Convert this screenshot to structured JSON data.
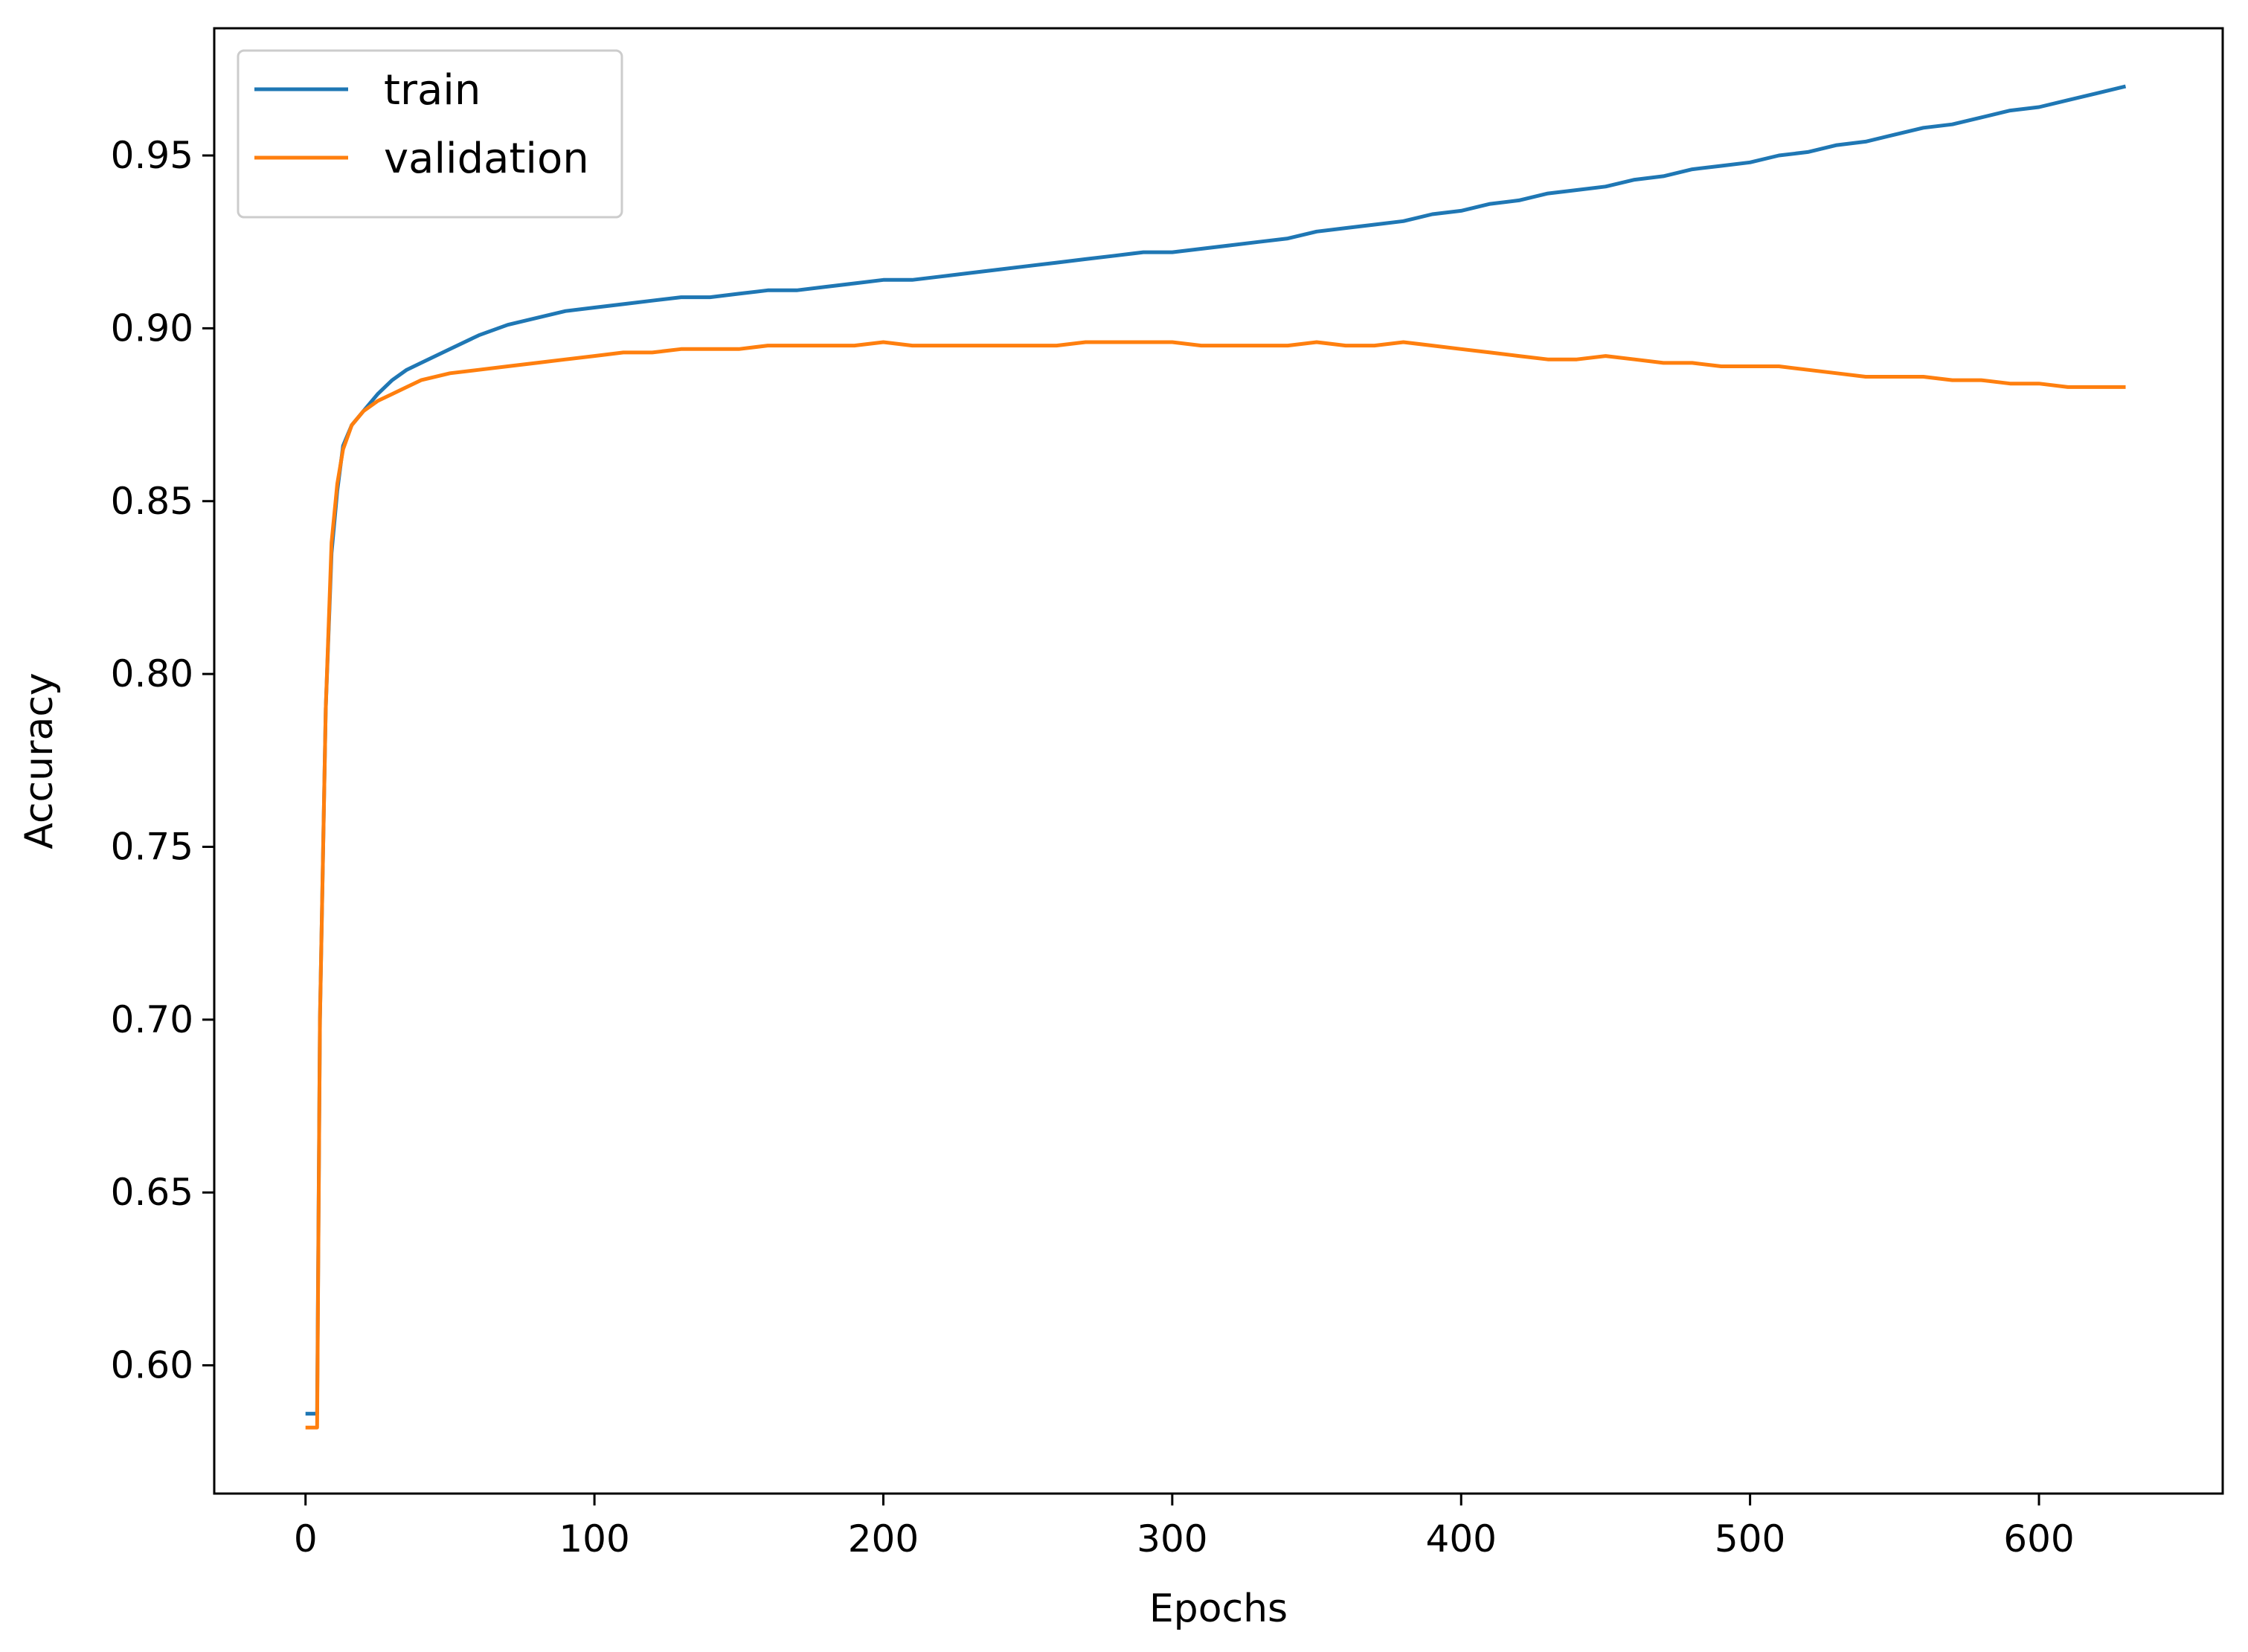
{
  "chart_data": {
    "type": "line",
    "title": "",
    "xlabel": "Epochs",
    "ylabel": "Accuracy",
    "xlim": [
      -31.6,
      663.6
    ],
    "ylim": [
      0.5629,
      0.9868
    ],
    "xticks": [
      0,
      100,
      200,
      300,
      400,
      500,
      600
    ],
    "xtick_labels": [
      "0",
      "100",
      "200",
      "300",
      "400",
      "500",
      "600"
    ],
    "yticks": [
      0.6,
      0.65,
      0.7,
      0.75,
      0.8,
      0.85,
      0.9,
      0.95
    ],
    "ytick_labels": [
      "0.60",
      "0.65",
      "0.70",
      "0.75",
      "0.80",
      "0.85",
      "0.90",
      "0.95"
    ],
    "grid": false,
    "legend_position": "top-left",
    "series": [
      {
        "name": "train",
        "color": "#1f77b4",
        "points": [
          [
            0,
            0.586
          ],
          [
            4,
            0.586
          ],
          [
            5,
            0.7
          ],
          [
            7,
            0.79
          ],
          [
            9,
            0.835
          ],
          [
            11,
            0.853
          ],
          [
            13,
            0.866
          ],
          [
            16,
            0.872
          ],
          [
            20,
            0.876
          ],
          [
            25,
            0.881
          ],
          [
            30,
            0.885
          ],
          [
            35,
            0.888
          ],
          [
            40,
            0.89
          ],
          [
            50,
            0.894
          ],
          [
            60,
            0.898
          ],
          [
            70,
            0.901
          ],
          [
            80,
            0.903
          ],
          [
            90,
            0.905
          ],
          [
            100,
            0.906
          ],
          [
            110,
            0.907
          ],
          [
            120,
            0.908
          ],
          [
            130,
            0.909
          ],
          [
            140,
            0.909
          ],
          [
            150,
            0.91
          ],
          [
            160,
            0.911
          ],
          [
            170,
            0.911
          ],
          [
            180,
            0.912
          ],
          [
            190,
            0.913
          ],
          [
            200,
            0.914
          ],
          [
            210,
            0.914
          ],
          [
            220,
            0.915
          ],
          [
            230,
            0.916
          ],
          [
            240,
            0.917
          ],
          [
            250,
            0.918
          ],
          [
            260,
            0.919
          ],
          [
            270,
            0.92
          ],
          [
            280,
            0.921
          ],
          [
            290,
            0.922
          ],
          [
            300,
            0.922
          ],
          [
            310,
            0.923
          ],
          [
            320,
            0.924
          ],
          [
            330,
            0.925
          ],
          [
            340,
            0.926
          ],
          [
            350,
            0.928
          ],
          [
            360,
            0.929
          ],
          [
            370,
            0.93
          ],
          [
            380,
            0.931
          ],
          [
            390,
            0.933
          ],
          [
            400,
            0.934
          ],
          [
            410,
            0.936
          ],
          [
            420,
            0.937
          ],
          [
            430,
            0.939
          ],
          [
            440,
            0.94
          ],
          [
            450,
            0.941
          ],
          [
            460,
            0.943
          ],
          [
            470,
            0.944
          ],
          [
            480,
            0.946
          ],
          [
            490,
            0.947
          ],
          [
            500,
            0.948
          ],
          [
            510,
            0.95
          ],
          [
            520,
            0.951
          ],
          [
            530,
            0.953
          ],
          [
            540,
            0.954
          ],
          [
            550,
            0.956
          ],
          [
            560,
            0.958
          ],
          [
            570,
            0.959
          ],
          [
            580,
            0.961
          ],
          [
            590,
            0.963
          ],
          [
            600,
            0.964
          ],
          [
            610,
            0.966
          ],
          [
            620,
            0.968
          ],
          [
            630,
            0.97
          ]
        ]
      },
      {
        "name": "validation",
        "color": "#ff7f0e",
        "points": [
          [
            0,
            0.582
          ],
          [
            4,
            0.582
          ],
          [
            5,
            0.7
          ],
          [
            7,
            0.79
          ],
          [
            9,
            0.838
          ],
          [
            11,
            0.855
          ],
          [
            13,
            0.865
          ],
          [
            16,
            0.872
          ],
          [
            20,
            0.876
          ],
          [
            25,
            0.879
          ],
          [
            30,
            0.881
          ],
          [
            35,
            0.883
          ],
          [
            40,
            0.885
          ],
          [
            50,
            0.887
          ],
          [
            60,
            0.888
          ],
          [
            70,
            0.889
          ],
          [
            80,
            0.89
          ],
          [
            90,
            0.891
          ],
          [
            100,
            0.892
          ],
          [
            110,
            0.893
          ],
          [
            120,
            0.893
          ],
          [
            130,
            0.894
          ],
          [
            140,
            0.894
          ],
          [
            150,
            0.894
          ],
          [
            160,
            0.895
          ],
          [
            170,
            0.895
          ],
          [
            180,
            0.895
          ],
          [
            190,
            0.895
          ],
          [
            200,
            0.896
          ],
          [
            210,
            0.895
          ],
          [
            220,
            0.895
          ],
          [
            230,
            0.895
          ],
          [
            240,
            0.895
          ],
          [
            250,
            0.895
          ],
          [
            260,
            0.895
          ],
          [
            270,
            0.896
          ],
          [
            280,
            0.896
          ],
          [
            290,
            0.896
          ],
          [
            300,
            0.896
          ],
          [
            310,
            0.895
          ],
          [
            320,
            0.895
          ],
          [
            330,
            0.895
          ],
          [
            340,
            0.895
          ],
          [
            350,
            0.896
          ],
          [
            360,
            0.895
          ],
          [
            370,
            0.895
          ],
          [
            380,
            0.896
          ],
          [
            390,
            0.895
          ],
          [
            400,
            0.894
          ],
          [
            410,
            0.893
          ],
          [
            420,
            0.892
          ],
          [
            430,
            0.891
          ],
          [
            440,
            0.891
          ],
          [
            450,
            0.892
          ],
          [
            460,
            0.891
          ],
          [
            470,
            0.89
          ],
          [
            480,
            0.89
          ],
          [
            490,
            0.889
          ],
          [
            500,
            0.889
          ],
          [
            510,
            0.889
          ],
          [
            520,
            0.888
          ],
          [
            530,
            0.887
          ],
          [
            540,
            0.886
          ],
          [
            550,
            0.886
          ],
          [
            560,
            0.886
          ],
          [
            570,
            0.885
          ],
          [
            580,
            0.885
          ],
          [
            590,
            0.884
          ],
          [
            600,
            0.884
          ],
          [
            610,
            0.883
          ],
          [
            620,
            0.883
          ],
          [
            630,
            0.883
          ]
        ]
      }
    ]
  }
}
